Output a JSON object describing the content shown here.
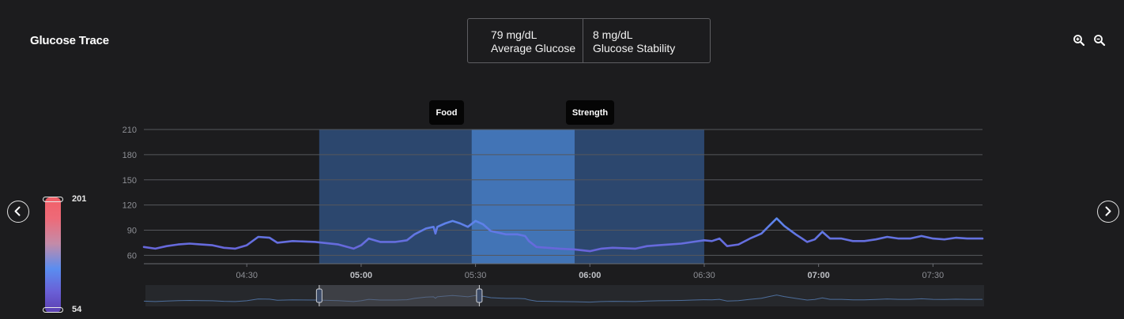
{
  "title": "Glucose Trace",
  "stats": {
    "average_value": "79 mg/dL",
    "average_label": "Average Glucose",
    "stability_value": "8 mg/dL",
    "stability_label": "Glucose Stability"
  },
  "icons": {
    "zoom_in": "zoom-in-icon",
    "zoom_out": "zoom-out-icon",
    "prev": "chevron-left-icon",
    "next": "chevron-right-icon"
  },
  "legend": {
    "max": "201",
    "min": "54"
  },
  "events": [
    {
      "label": "Food",
      "start": "05:29",
      "end": "05:56"
    },
    {
      "label": "Strength",
      "start": "05:56",
      "end": "06:30"
    }
  ],
  "highlight_window": {
    "start": "04:49",
    "end": "06:30"
  },
  "colors": {
    "background": "#1c1c1e",
    "line_low": "#6a5fd6",
    "line_high": "#5a8df0",
    "band": "#3a6cb0",
    "band_strong": "#4a83cf"
  },
  "chart_data": {
    "type": "line",
    "title": "",
    "xlabel": "",
    "ylabel": "",
    "ylim": [
      50,
      210
    ],
    "yticks": [
      60,
      90,
      120,
      150,
      180,
      210
    ],
    "x_range": [
      "04:03",
      "07:43"
    ],
    "xticks": [
      "04:30",
      "05:00",
      "05:30",
      "06:00",
      "06:30",
      "07:00",
      "07:30"
    ],
    "xticks_bold": [
      "05:00",
      "06:00",
      "07:00"
    ],
    "series": [
      {
        "points": [
          [
            "04:03",
            70
          ],
          [
            "04:06",
            68
          ],
          [
            "04:09",
            71
          ],
          [
            "04:12",
            73
          ],
          [
            "04:15",
            74
          ],
          [
            "04:18",
            73
          ],
          [
            "04:21",
            72
          ],
          [
            "04:24",
            69
          ],
          [
            "04:27",
            68
          ],
          [
            "04:30",
            72
          ],
          [
            "04:33",
            82
          ],
          [
            "04:36",
            81
          ],
          [
            "04:38",
            75
          ],
          [
            "04:42",
            77
          ],
          [
            "04:48",
            76
          ],
          [
            "04:54",
            73
          ],
          [
            "04:58",
            68
          ],
          [
            "05:00",
            72
          ],
          [
            "05:02",
            80
          ],
          [
            "05:05",
            76
          ],
          [
            "05:09",
            76
          ],
          [
            "05:12",
            78
          ],
          [
            "05:14",
            85
          ],
          [
            "05:17",
            92
          ],
          [
            "05:19",
            94
          ],
          [
            "05:19.5",
            86
          ],
          [
            "05:20",
            94
          ],
          [
            "05:22",
            98
          ],
          [
            "05:24",
            101
          ],
          [
            "05:26",
            98
          ],
          [
            "05:28",
            94
          ],
          [
            "05:30",
            101
          ],
          [
            "05:32",
            97
          ],
          [
            "05:34",
            89
          ],
          [
            "05:38",
            85
          ],
          [
            "05:41",
            85
          ],
          [
            "05:43",
            83
          ],
          [
            "05:44",
            77
          ],
          [
            "05:46",
            70
          ],
          [
            "05:52",
            68
          ],
          [
            "05:56",
            67
          ],
          [
            "06:00",
            65
          ],
          [
            "06:03",
            68
          ],
          [
            "06:06",
            69
          ],
          [
            "06:12",
            68
          ],
          [
            "06:15",
            71
          ],
          [
            "06:18",
            72
          ],
          [
            "06:21",
            73
          ],
          [
            "06:24",
            74
          ],
          [
            "06:27",
            76
          ],
          [
            "06:30",
            78
          ],
          [
            "06:32",
            77
          ],
          [
            "06:34",
            80
          ],
          [
            "06:36",
            71
          ],
          [
            "06:39",
            73
          ],
          [
            "06:42",
            80
          ],
          [
            "06:45",
            86
          ],
          [
            "06:47",
            95
          ],
          [
            "06:49",
            104
          ],
          [
            "06:51",
            95
          ],
          [
            "06:54",
            85
          ],
          [
            "06:57",
            76
          ],
          [
            "06:59",
            79
          ],
          [
            "07:01",
            88
          ],
          [
            "07:03",
            80
          ],
          [
            "07:06",
            80
          ],
          [
            "07:09",
            77
          ],
          [
            "07:12",
            77
          ],
          [
            "07:15",
            79
          ],
          [
            "07:18",
            82
          ],
          [
            "07:21",
            80
          ],
          [
            "07:24",
            80
          ],
          [
            "07:27",
            83
          ],
          [
            "07:30",
            80
          ],
          [
            "07:33",
            79
          ],
          [
            "07:36",
            81
          ],
          [
            "07:39",
            80
          ],
          [
            "07:43",
            80
          ]
        ]
      }
    ],
    "navigator": {
      "window_start": "04:49",
      "window_end": "05:31"
    },
    "legend_range": [
      54,
      201
    ],
    "grid": true
  }
}
